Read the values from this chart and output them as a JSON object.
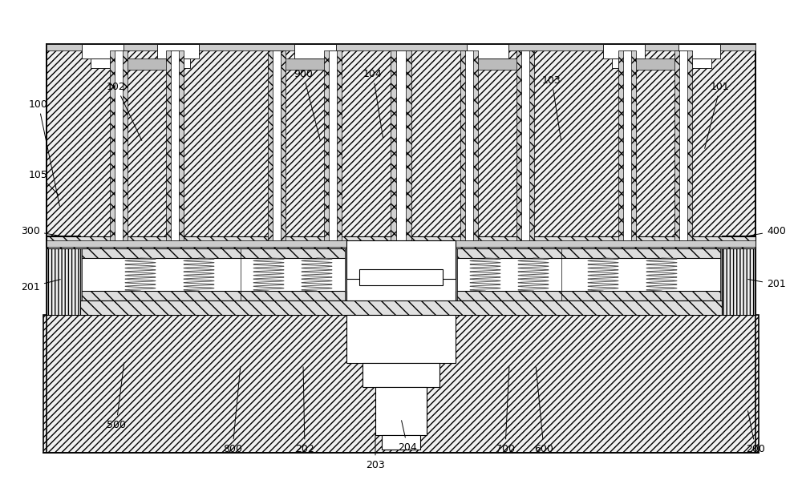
{
  "bg": "#ffffff",
  "lc": "#000000",
  "figsize": [
    10.0,
    6.14
  ],
  "dpi": 100,
  "annotations": [
    [
      "100",
      48,
      130,
      75,
      260
    ],
    [
      "102",
      145,
      108,
      178,
      178
    ],
    [
      "105",
      48,
      218,
      75,
      245
    ],
    [
      "300",
      38,
      288,
      78,
      295
    ],
    [
      "201_l",
      38,
      358,
      78,
      348
    ],
    [
      "201_r",
      968,
      355,
      930,
      348
    ],
    [
      "500",
      145,
      530,
      155,
      450
    ],
    [
      "800",
      290,
      560,
      300,
      455
    ],
    [
      "202",
      380,
      560,
      378,
      455
    ],
    [
      "203",
      468,
      580,
      468,
      538
    ],
    [
      "204",
      508,
      558,
      500,
      522
    ],
    [
      "700",
      630,
      560,
      635,
      455
    ],
    [
      "600",
      678,
      560,
      668,
      455
    ],
    [
      "200",
      942,
      560,
      932,
      510
    ],
    [
      "400",
      968,
      288,
      930,
      295
    ],
    [
      "101",
      898,
      108,
      878,
      188
    ],
    [
      "103",
      688,
      100,
      700,
      178
    ],
    [
      "104",
      465,
      92,
      478,
      175
    ],
    [
      "900",
      378,
      92,
      400,
      178
    ]
  ]
}
